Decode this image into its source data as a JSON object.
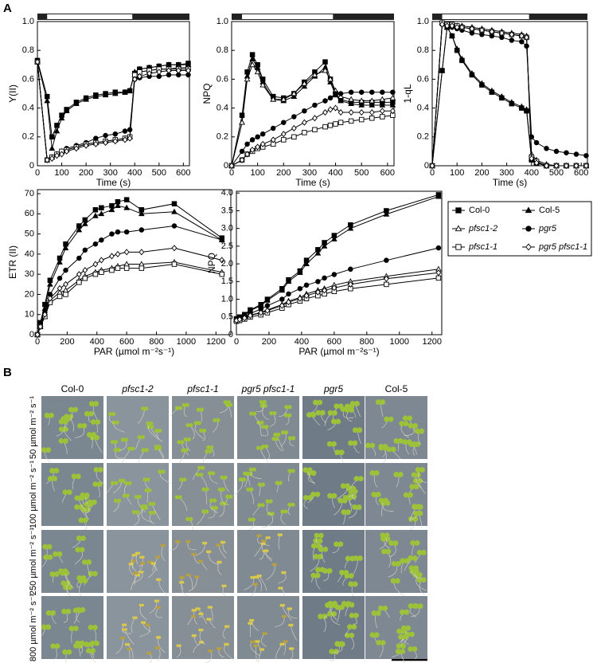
{
  "panel_labels": [
    "A",
    "B"
  ],
  "legend": {
    "entries": [
      {
        "name": "Col-0",
        "marker": "square",
        "fill": "#000000",
        "italic": false
      },
      {
        "name": "Col-5",
        "marker": "triangle",
        "fill": "#000000",
        "italic": false
      },
      {
        "name": "pfsc1-2",
        "marker": "triangle",
        "fill": "#ffffff",
        "italic": true
      },
      {
        "name": "pgr5",
        "marker": "circle",
        "fill": "#000000",
        "italic": true
      },
      {
        "name": "pfsc1-1",
        "marker": "square",
        "fill": "#ffffff",
        "italic": true
      },
      {
        "name": "pgr5 pfsc1-1",
        "marker": "diamond",
        "fill": "#ffffff",
        "italic": true
      }
    ]
  },
  "chart_data": [
    {
      "type": "line",
      "ylabel": "Y(II)",
      "xlabel": "Time (s)",
      "light_period": [
        40,
        390
      ],
      "xlim": [
        0,
        625
      ],
      "ylim": [
        0,
        1
      ],
      "xticks": [
        0,
        100,
        200,
        300,
        400,
        500,
        600
      ],
      "yticks": [
        0,
        0.2,
        0.4,
        0.6,
        0.8,
        {
          "value": 1,
          "label": "1.0"
        }
      ],
      "x": [
        0,
        40,
        60,
        80,
        100,
        120,
        160,
        200,
        240,
        280,
        320,
        360,
        380,
        400,
        420,
        460,
        500,
        540,
        580,
        620
      ],
      "series": [
        {
          "values": [
            0.73,
            0.48,
            0.2,
            0.28,
            0.35,
            0.39,
            0.44,
            0.47,
            0.49,
            0.5,
            0.51,
            0.51,
            0.52,
            0.64,
            0.67,
            0.68,
            0.69,
            0.7,
            0.7,
            0.71
          ]
        },
        {
          "values": [
            0.72,
            0.45,
            0.12,
            0.24,
            0.33,
            0.38,
            0.43,
            0.46,
            0.48,
            0.49,
            0.5,
            0.51,
            0.52,
            0.65,
            0.67,
            0.68,
            0.69,
            0.7,
            0.7,
            0.7
          ]
        },
        {
          "values": [
            0.72,
            0.04,
            0.06,
            0.08,
            0.1,
            0.11,
            0.13,
            0.15,
            0.16,
            0.17,
            0.18,
            0.19,
            0.2,
            0.63,
            0.65,
            0.66,
            0.67,
            0.67,
            0.68,
            0.68
          ]
        },
        {
          "values": [
            0.72,
            0.04,
            0.06,
            0.08,
            0.1,
            0.12,
            0.14,
            0.16,
            0.19,
            0.21,
            0.22,
            0.24,
            0.25,
            0.6,
            0.61,
            0.62,
            0.62,
            0.63,
            0.63,
            0.63
          ]
        },
        {
          "values": [
            0.72,
            0.04,
            0.06,
            0.08,
            0.1,
            0.11,
            0.13,
            0.15,
            0.16,
            0.17,
            0.18,
            0.19,
            0.2,
            0.63,
            0.65,
            0.66,
            0.67,
            0.67,
            0.67,
            0.67
          ]
        },
        {
          "values": [
            0.72,
            0.04,
            0.05,
            0.07,
            0.08,
            0.1,
            0.12,
            0.14,
            0.15,
            0.16,
            0.17,
            0.18,
            0.19,
            0.6,
            0.62,
            0.64,
            0.65,
            0.66,
            0.66,
            0.66
          ]
        }
      ]
    },
    {
      "type": "line",
      "ylabel": "NPQ",
      "xlabel": "Time (s)",
      "light_period": [
        40,
        390
      ],
      "xlim": [
        0,
        625
      ],
      "ylim": [
        0,
        1
      ],
      "xticks": [
        0,
        100,
        200,
        300,
        400,
        500,
        600
      ],
      "yticks": [
        0,
        0.2,
        0.4,
        0.6,
        0.8,
        {
          "value": 1,
          "label": "1.0"
        }
      ],
      "x": [
        0,
        40,
        60,
        80,
        100,
        120,
        160,
        200,
        240,
        280,
        320,
        360,
        380,
        400,
        420,
        460,
        500,
        540,
        580,
        620
      ],
      "series": [
        {
          "values": [
            0,
            0.35,
            0.65,
            0.77,
            0.7,
            0.6,
            0.48,
            0.47,
            0.5,
            0.58,
            0.65,
            0.72,
            0.6,
            0.5,
            0.46,
            0.44,
            0.44,
            0.44,
            0.44,
            0.44
          ]
        },
        {
          "values": [
            0,
            0.3,
            0.62,
            0.74,
            0.68,
            0.58,
            0.46,
            0.45,
            0.48,
            0.55,
            0.62,
            0.68,
            0.58,
            0.49,
            0.45,
            0.43,
            0.42,
            0.42,
            0.42,
            0.42
          ]
        },
        {
          "values": [
            0,
            0.3,
            0.6,
            0.7,
            0.65,
            0.56,
            0.46,
            0.46,
            0.5,
            0.57,
            0.63,
            0.66,
            0.6,
            0.52,
            0.48,
            0.46,
            0.45,
            0.45,
            0.46,
            0.47
          ]
        },
        {
          "values": [
            0,
            0.1,
            0.15,
            0.18,
            0.2,
            0.22,
            0.26,
            0.3,
            0.34,
            0.38,
            0.42,
            0.45,
            0.47,
            0.5,
            0.5,
            0.51,
            0.51,
            0.51,
            0.51,
            0.51
          ]
        },
        {
          "values": [
            0,
            0.04,
            0.08,
            0.1,
            0.12,
            0.13,
            0.15,
            0.18,
            0.2,
            0.23,
            0.25,
            0.27,
            0.28,
            0.29,
            0.3,
            0.31,
            0.32,
            0.33,
            0.34,
            0.35
          ]
        },
        {
          "values": [
            0,
            0.04,
            0.08,
            0.11,
            0.13,
            0.15,
            0.18,
            0.22,
            0.26,
            0.3,
            0.33,
            0.37,
            0.39,
            0.4,
            0.37,
            0.37,
            0.37,
            0.37,
            0.38,
            0.38
          ]
        }
      ]
    },
    {
      "type": "line",
      "ylabel": "1-qL",
      "xlabel": "Time (s)",
      "light_period": [
        40,
        390
      ],
      "xlim": [
        0,
        625
      ],
      "ylim": [
        0,
        1
      ],
      "xticks": [
        0,
        100,
        200,
        300,
        400,
        500,
        600
      ],
      "yticks": [
        0,
        0.2,
        0.4,
        0.6,
        0.8,
        {
          "value": 1,
          "label": "1.0"
        }
      ],
      "x": [
        0,
        40,
        60,
        80,
        100,
        120,
        160,
        200,
        240,
        280,
        320,
        360,
        380,
        400,
        420,
        460,
        500,
        540,
        580,
        620
      ],
      "series": [
        {
          "values": [
            0,
            0.66,
            0.96,
            0.9,
            0.8,
            0.73,
            0.63,
            0.56,
            0.51,
            0.47,
            0.43,
            0.4,
            0.38,
            0.04,
            0.02,
            0,
            0,
            0,
            0,
            0
          ]
        },
        {
          "values": [
            0,
            0.66,
            0.96,
            0.9,
            0.81,
            0.74,
            0.64,
            0.57,
            0.52,
            0.48,
            0.44,
            0.41,
            0.39,
            0.05,
            0.02,
            0,
            0,
            0,
            0,
            0
          ]
        },
        {
          "values": [
            0,
            0.99,
            0.98,
            0.98,
            0.97,
            0.97,
            0.96,
            0.95,
            0.94,
            0.93,
            0.92,
            0.91,
            0.9,
            0.08,
            0.04,
            0.01,
            0,
            0,
            0,
            0
          ]
        },
        {
          "values": [
            0,
            0.98,
            0.97,
            0.96,
            0.95,
            0.94,
            0.92,
            0.91,
            0.9,
            0.89,
            0.87,
            0.86,
            0.83,
            0.2,
            0.16,
            0.12,
            0.1,
            0.09,
            0.08,
            0.07
          ]
        },
        {
          "values": [
            0,
            0.99,
            0.98,
            0.98,
            0.97,
            0.96,
            0.95,
            0.94,
            0.93,
            0.92,
            0.91,
            0.9,
            0.89,
            0.06,
            0.03,
            0,
            0,
            0,
            0,
            0
          ]
        },
        {
          "values": [
            0,
            0.98,
            0.97,
            0.97,
            0.96,
            0.96,
            0.95,
            0.94,
            0.93,
            0.92,
            0.91,
            0.9,
            0.89,
            0.05,
            0.02,
            0,
            0,
            0,
            0,
            0
          ]
        }
      ]
    },
    {
      "type": "line",
      "ylabel": "ETR (II)",
      "xlabel": "PAR (µmol m⁻²s⁻¹)",
      "xlim": [
        0,
        1300
      ],
      "ylim": [
        0,
        72
      ],
      "xticks": [
        0,
        200,
        400,
        600,
        800,
        1000,
        1200
      ],
      "yticks": [
        0,
        10,
        20,
        30,
        40,
        50,
        60,
        70
      ],
      "x": [
        0,
        20,
        50,
        85,
        150,
        190,
        280,
        320,
        390,
        430,
        500,
        540,
        600,
        700,
        920,
        1240
      ],
      "series": [
        {
          "values": [
            0,
            6,
            15,
            27,
            38,
            45,
            54,
            57,
            62,
            63,
            64,
            66,
            67,
            62,
            65,
            48
          ]
        },
        {
          "values": [
            0,
            5,
            13,
            25,
            36,
            43,
            52,
            55,
            59,
            60,
            62,
            64,
            63,
            60,
            61,
            47
          ]
        },
        {
          "values": [
            0,
            4,
            9,
            17,
            21,
            22,
            27,
            29,
            31,
            32,
            33,
            34,
            35,
            35,
            36,
            31
          ]
        },
        {
          "values": [
            0,
            5,
            11,
            20,
            28,
            32,
            38,
            42,
            45,
            47,
            50,
            51,
            51,
            52,
            54,
            47
          ]
        },
        {
          "values": [
            0,
            4,
            9,
            16,
            19,
            20,
            26,
            28,
            30,
            31,
            32,
            33,
            33,
            33,
            35,
            30
          ]
        },
        {
          "values": [
            0,
            4,
            10,
            18,
            23,
            25,
            30,
            32,
            35,
            37,
            39,
            40,
            41,
            41,
            43,
            37
          ]
        }
      ]
    },
    {
      "type": "line",
      "ylabel": "NPQ",
      "xlabel": "PAR (µmol m⁻²s⁻¹)",
      "xlim": [
        0,
        1260
      ],
      "ylim": [
        0,
        4.05
      ],
      "xticks": [
        0,
        200,
        400,
        600,
        800,
        1000,
        1200
      ],
      "yticks": [
        0,
        0.5,
        {
          "value": 1,
          "label": "1.0"
        },
        1.5,
        {
          "value": 2,
          "label": "2.0"
        },
        2.5,
        {
          "value": 3,
          "label": "3.0"
        },
        3.5,
        {
          "value": 4,
          "label": "4.0"
        }
      ],
      "x": [
        0,
        20,
        50,
        85,
        150,
        190,
        280,
        320,
        390,
        430,
        500,
        540,
        600,
        700,
        920,
        1240
      ],
      "series": [
        {
          "values": [
            0.45,
            0.5,
            0.57,
            0.7,
            0.85,
            1.0,
            1.3,
            1.55,
            1.8,
            2.1,
            2.4,
            2.6,
            2.8,
            3.1,
            3.5,
            3.95
          ]
        },
        {
          "values": [
            0.43,
            0.48,
            0.55,
            0.68,
            0.82,
            0.97,
            1.25,
            1.5,
            1.75,
            2.0,
            2.3,
            2.5,
            2.7,
            3.0,
            3.4,
            3.9
          ]
        },
        {
          "values": [
            0.4,
            0.44,
            0.48,
            0.55,
            0.63,
            0.7,
            0.85,
            0.95,
            1.05,
            1.15,
            1.25,
            1.3,
            1.4,
            1.5,
            1.65,
            1.85
          ]
        },
        {
          "values": [
            0.42,
            0.45,
            0.5,
            0.6,
            0.72,
            0.82,
            1.0,
            1.15,
            1.3,
            1.4,
            1.5,
            1.6,
            1.7,
            1.85,
            2.1,
            2.45
          ]
        },
        {
          "values": [
            0.38,
            0.4,
            0.44,
            0.5,
            0.56,
            0.62,
            0.75,
            0.85,
            0.95,
            1.02,
            1.1,
            1.15,
            1.22,
            1.3,
            1.42,
            1.6
          ]
        },
        {
          "values": [
            0.4,
            0.43,
            0.47,
            0.54,
            0.62,
            0.68,
            0.82,
            0.92,
            1.02,
            1.1,
            1.2,
            1.25,
            1.32,
            1.42,
            1.58,
            1.75
          ]
        }
      ]
    }
  ],
  "photo_grid": {
    "columns": [
      {
        "label": "Col-0",
        "italic": false
      },
      {
        "label": "pfsc1-2",
        "italic": true
      },
      {
        "label": "pfsc1-1",
        "italic": true
      },
      {
        "label": "pgr5  pfsc1-1",
        "italic": true
      },
      {
        "label": "pgr5",
        "italic": true
      },
      {
        "label": "Col-5",
        "italic": false
      }
    ],
    "rows": [
      "50 µmol m⁻² s⁻¹",
      "100 µmol m⁻² s⁻¹",
      "250 µmol m⁻² s⁻¹",
      "800 µmol m⁻² s⁻¹"
    ]
  }
}
